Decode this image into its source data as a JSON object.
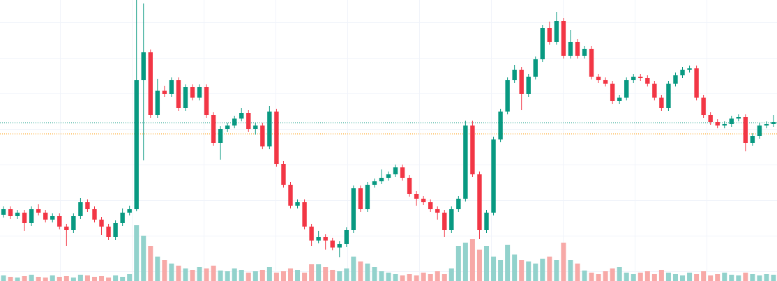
{
  "chart_data": {
    "type": "candlestick",
    "open": [
      95,
      103,
      93,
      98,
      83,
      103,
      98,
      88,
      93,
      78,
      73,
      93,
      113,
      103,
      88,
      78,
      63,
      83,
      98,
      103,
      288,
      328,
      238,
      273,
      268,
      288,
      248,
      278,
      263,
      278,
      238,
      198,
      218,
      223,
      233,
      241,
      218,
      223,
      193,
      243,
      168,
      138,
      108,
      113,
      78,
      58,
      63,
      58,
      48,
      53,
      73,
      133,
      103,
      138,
      143,
      148,
      153,
      163,
      148,
      125,
      118,
      113,
      103,
      98,
      73,
      103,
      118,
      223,
      153,
      73,
      98,
      203,
      243,
      288,
      303,
      268,
      293,
      318,
      363,
      343,
      373,
      323,
      343,
      323,
      333,
      293,
      288,
      283,
      258,
      263,
      288,
      293,
      291,
      283,
      263,
      248,
      283,
      295,
      303,
      305,
      263,
      238,
      228,
      223,
      225,
      233,
      235,
      198,
      208,
      223,
      225
    ],
    "high": [
      107,
      107,
      102,
      102,
      107,
      110,
      102,
      97,
      97,
      82,
      97,
      119,
      117,
      107,
      92,
      82,
      87,
      104,
      108,
      403,
      398,
      332,
      290,
      280,
      292,
      292,
      282,
      282,
      282,
      282,
      242,
      222,
      227,
      237,
      248,
      245,
      227,
      227,
      251,
      247,
      172,
      142,
      117,
      117,
      82,
      72,
      67,
      62,
      57,
      77,
      137,
      137,
      142,
      147,
      160,
      157,
      167,
      167,
      152,
      129,
      122,
      117,
      107,
      102,
      107,
      122,
      230,
      230,
      157,
      102,
      207,
      247,
      292,
      310,
      307,
      297,
      322,
      367,
      372,
      386,
      377,
      360,
      347,
      337,
      337,
      297,
      292,
      287,
      267,
      292,
      297,
      297,
      295,
      287,
      267,
      287,
      299,
      307,
      309,
      309,
      267,
      242,
      232,
      229,
      237,
      239,
      239,
      212,
      227,
      229,
      238
    ],
    "low": [
      91,
      89,
      89,
      72,
      79,
      94,
      84,
      84,
      74,
      50,
      69,
      89,
      99,
      84,
      66,
      59,
      59,
      79,
      94,
      100,
      173,
      234,
      234,
      264,
      264,
      244,
      244,
      259,
      259,
      234,
      194,
      174,
      214,
      219,
      229,
      214,
      210,
      189,
      189,
      164,
      134,
      104,
      104,
      74,
      50,
      54,
      45,
      44,
      34,
      49,
      69,
      99,
      99,
      134,
      139,
      144,
      149,
      144,
      121,
      108,
      109,
      99,
      88,
      63,
      69,
      99,
      114,
      149,
      60,
      69,
      94,
      199,
      239,
      284,
      245,
      264,
      289,
      314,
      339,
      339,
      319,
      319,
      319,
      319,
      289,
      284,
      279,
      254,
      254,
      259,
      284,
      287,
      279,
      259,
      244,
      244,
      279,
      291,
      299,
      259,
      234,
      224,
      219,
      219,
      221,
      229,
      186,
      194,
      204,
      219,
      221
    ],
    "close": [
      103,
      93,
      98,
      83,
      103,
      98,
      88,
      93,
      78,
      73,
      93,
      113,
      103,
      88,
      78,
      63,
      83,
      98,
      103,
      288,
      328,
      238,
      273,
      268,
      288,
      248,
      278,
      263,
      278,
      238,
      198,
      218,
      223,
      233,
      241,
      218,
      223,
      193,
      243,
      168,
      138,
      108,
      113,
      78,
      58,
      63,
      58,
      48,
      53,
      73,
      133,
      103,
      138,
      143,
      148,
      153,
      163,
      148,
      125,
      118,
      113,
      103,
      98,
      73,
      103,
      118,
      223,
      153,
      73,
      98,
      203,
      243,
      288,
      303,
      268,
      293,
      318,
      363,
      343,
      373,
      323,
      343,
      323,
      333,
      293,
      288,
      283,
      258,
      263,
      288,
      293,
      291,
      283,
      263,
      248,
      283,
      295,
      303,
      305,
      263,
      238,
      228,
      223,
      225,
      233,
      235,
      198,
      208,
      223,
      225,
      228
    ],
    "volume": [
      8,
      6,
      5,
      7,
      9,
      6,
      5,
      8,
      6,
      7,
      5,
      9,
      8,
      6,
      7,
      5,
      8,
      6,
      10,
      80,
      65,
      50,
      35,
      30,
      25,
      22,
      18,
      16,
      20,
      18,
      22,
      15,
      14,
      18,
      16,
      12,
      14,
      16,
      20,
      12,
      14,
      18,
      16,
      12,
      24,
      24,
      20,
      16,
      14,
      18,
      35,
      28,
      25,
      20,
      14,
      12,
      10,
      8,
      10,
      8,
      12,
      10,
      14,
      10,
      18,
      50,
      55,
      60,
      45,
      50,
      35,
      30,
      52,
      38,
      30,
      28,
      25,
      32,
      35,
      30,
      55,
      30,
      25,
      15,
      12,
      10,
      14,
      18,
      20,
      12,
      10,
      12,
      14,
      10,
      16,
      12,
      10,
      8,
      12,
      10,
      14,
      8,
      10,
      12,
      9,
      8,
      12,
      10,
      8,
      10,
      9
    ],
    "ylim": [
      0,
      403
    ],
    "y2lim": [
      0,
      403
    ],
    "up_color": "#089981",
    "down_color": "#f23645",
    "up_volume_color": "#92d2cc",
    "down_volume_color": "#f7a9a7",
    "price_lines": [
      {
        "value": 227,
        "color": "#089981"
      },
      {
        "value": 211,
        "color": "#ff9800"
      }
    ]
  }
}
